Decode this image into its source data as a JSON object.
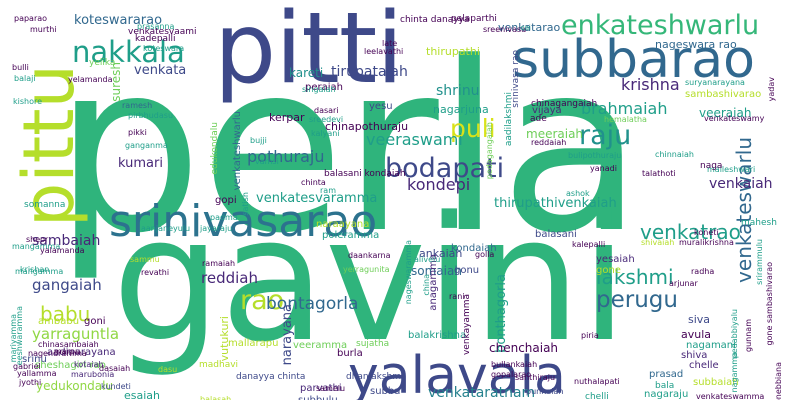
{
  "title": "word cloud",
  "palette": {
    "green": "#2fb47c",
    "green2": "#35b779",
    "teal": "#1f9e89",
    "teal2": "#26828e",
    "blue": "#31688e",
    "navy": "#3e4989",
    "purple": "#482878",
    "dark": "#440154",
    "lime": "#6ece58",
    "lime2": "#90d743",
    "yellow": "#b5de2b",
    "yellow2": "#d8e219",
    "cyan": "#21918c",
    "steel": "#2c728e"
  },
  "words": [
    {
      "text": "perla",
      "color": "green"
    },
    {
      "text": "gavini",
      "color": "green"
    },
    {
      "text": "pitti",
      "color": "navy"
    },
    {
      "text": "subbarao",
      "color": "blue"
    },
    {
      "text": "pittu",
      "color": "yellow"
    },
    {
      "text": "srinivasarao",
      "color": "steel"
    },
    {
      "text": "yalavala",
      "color": "navy"
    },
    {
      "text": "enkateshwarlu",
      "color": "green2"
    },
    {
      "text": "nakkala",
      "color": "teal"
    },
    {
      "text": "tirupataiah",
      "color": "navy"
    },
    {
      "text": "puli",
      "color": "yellow2"
    },
    {
      "text": "raju",
      "color": "cyan"
    },
    {
      "text": "bodapati",
      "color": "navy"
    },
    {
      "text": "rao",
      "color": "yellow"
    },
    {
      "text": "perugu",
      "color": "blue"
    },
    {
      "text": "lakshmi",
      "color": "teal"
    },
    {
      "text": "venkateswarlu",
      "color": "blue"
    },
    {
      "text": "venkatrao",
      "color": "teal"
    },
    {
      "text": "babu",
      "color": "yellow"
    },
    {
      "text": "bontagorla",
      "color": "blue"
    },
    {
      "text": "pothuraju",
      "color": "blue"
    },
    {
      "text": "venkataratnam",
      "color": "teal2"
    },
    {
      "text": "sambaiah",
      "color": "purple"
    },
    {
      "text": "gangaiah",
      "color": "navy"
    },
    {
      "text": "yarraguntla",
      "color": "lime2"
    },
    {
      "text": "venkaiah",
      "color": "purple"
    },
    {
      "text": "kondepi",
      "color": "purple"
    },
    {
      "text": "veeraswami",
      "color": "teal"
    },
    {
      "text": "reddiah",
      "color": "purple"
    },
    {
      "text": "brahmaiah",
      "color": "teal"
    },
    {
      "text": "krishna",
      "color": "purple"
    },
    {
      "text": "koteswararao",
      "color": "blue"
    },
    {
      "text": "venkata",
      "color": "navy"
    },
    {
      "text": "shrinu",
      "color": "cyan"
    },
    {
      "text": "kareti",
      "color": "cyan"
    },
    {
      "text": "kumari",
      "color": "purple"
    },
    {
      "text": "venkatesvaramma",
      "color": "teal"
    },
    {
      "text": "thirupathivenkaiah",
      "color": "teal"
    },
    {
      "text": "bonthagorla",
      "color": "teal"
    },
    {
      "text": "chenchaiah",
      "color": "dark"
    },
    {
      "text": "narayana",
      "color": "navy"
    },
    {
      "text": "veeraiah",
      "color": "teal"
    },
    {
      "text": "meeraiah",
      "color": "lime"
    },
    {
      "text": "somaiah",
      "color": "blue"
    },
    {
      "text": "yedukondalu",
      "color": "lime2"
    },
    {
      "text": "suresh",
      "color": "lime"
    },
    {
      "text": "venkatarao",
      "color": "blue"
    },
    {
      "text": "nageswara rao",
      "color": "blue"
    },
    {
      "text": "sambashivarao",
      "color": "yellow"
    },
    {
      "text": "chinapothuraju",
      "color": "dark"
    },
    {
      "text": "thirupathi",
      "color": "yellow"
    },
    {
      "text": "peraiah",
      "color": "dark"
    },
    {
      "text": "poleramma",
      "color": "teal"
    },
    {
      "text": "ankaiah",
      "color": "navy"
    },
    {
      "text": "esaiah",
      "color": "teal"
    },
    {
      "text": "subbulu",
      "color": "navy"
    },
    {
      "text": "vutukuri",
      "color": "yellow"
    },
    {
      "text": "gopi",
      "color": "dark"
    },
    {
      "text": "avula",
      "color": "dark"
    },
    {
      "text": "shiva",
      "color": "purple"
    },
    {
      "text": "kondaiah",
      "color": "blue"
    },
    {
      "text": "balasani",
      "color": "navy"
    },
    {
      "text": "yesaiah",
      "color": "purple"
    },
    {
      "text": "gone",
      "color": "yellow"
    },
    {
      "text": "siva",
      "color": "navy"
    },
    {
      "text": "nagamani",
      "color": "teal"
    },
    {
      "text": "prasad",
      "color": "blue"
    },
    {
      "text": "sheshagiri rao",
      "color": "lime"
    },
    {
      "text": "aadinarayana",
      "color": "purple"
    },
    {
      "text": "ambabu",
      "color": "yellow"
    },
    {
      "text": "goni",
      "color": "dark"
    },
    {
      "text": "srinu",
      "color": "navy"
    },
    {
      "text": "mallarapu",
      "color": "yellow"
    },
    {
      "text": "somanna",
      "color": "teal"
    },
    {
      "text": "kerpar",
      "color": "dark"
    },
    {
      "text": "yesu",
      "color": "navy"
    },
    {
      "text": "nagarjuna",
      "color": "teal"
    },
    {
      "text": "vijaya",
      "color": "purple"
    },
    {
      "text": "chinagangaiah",
      "color": "dark"
    },
    {
      "text": "venkateshwarlu",
      "color": "blue"
    },
    {
      "text": "subbaiah",
      "color": "yellow"
    },
    {
      "text": "chelle",
      "color": "purple"
    },
    {
      "text": "burla",
      "color": "dark"
    },
    {
      "text": "balakrishna",
      "color": "teal"
    },
    {
      "text": "anagamma",
      "color": "purple"
    },
    {
      "text": "gonu",
      "color": "navy"
    },
    {
      "text": "venkayamma",
      "color": "dark"
    },
    {
      "text": "sujatha",
      "color": "lime"
    },
    {
      "text": "veeramma",
      "color": "lime"
    },
    {
      "text": "nagaraju",
      "color": "teal"
    },
    {
      "text": "subba",
      "color": "navy"
    },
    {
      "text": "parvathi",
      "color": "purple"
    },
    {
      "text": "punnaiah",
      "color": "navy"
    },
    {
      "text": "chelli",
      "color": "teal"
    },
    {
      "text": "bala",
      "color": "teal"
    },
    {
      "text": "danayya chinta",
      "color": "navy"
    },
    {
      "text": "dhanlakshmi",
      "color": "navy"
    },
    {
      "text": "golla",
      "color": "dark"
    },
    {
      "text": "sammu",
      "color": "yellow"
    },
    {
      "text": "kundeti",
      "color": "navy"
    },
    {
      "text": "kotaiah",
      "color": "purple"
    },
    {
      "text": "marubonia",
      "color": "purple"
    },
    {
      "text": "nagendramma",
      "color": "dark"
    },
    {
      "text": "ramesh",
      "color": "blue"
    },
    {
      "text": "pirbhudasu",
      "color": "teal"
    },
    {
      "text": "ganganma",
      "color": "teal"
    },
    {
      "text": "pikki",
      "color": "dark"
    },
    {
      "text": "dasari",
      "color": "dark"
    },
    {
      "text": "sreedevi",
      "color": "teal"
    },
    {
      "text": "kalyani",
      "color": "teal"
    },
    {
      "text": "singaiah",
      "color": "teal"
    },
    {
      "text": "edukondalu",
      "color": "lime"
    },
    {
      "text": "vamsi",
      "color": "teal"
    },
    {
      "text": "bujji",
      "color": "teal"
    },
    {
      "text": "satish",
      "color": "teal"
    },
    {
      "text": "padma",
      "color": "teal"
    },
    {
      "text": "jayaraju",
      "color": "teal"
    },
    {
      "text": "aanjaneyulu",
      "color": "teal"
    },
    {
      "text": "chinta",
      "color": "dark"
    },
    {
      "text": "chinta danayya",
      "color": "dark"
    },
    {
      "text": "palaparthi",
      "color": "dark"
    },
    {
      "text": "sreenivasa",
      "color": "dark"
    },
    {
      "text": "paparao",
      "color": "dark"
    },
    {
      "text": "prasanna",
      "color": "teal"
    },
    {
      "text": "murthi",
      "color": "dark"
    },
    {
      "text": "kadepalli",
      "color": "dark"
    },
    {
      "text": "koteswara",
      "color": "teal"
    },
    {
      "text": "venkatesvaami",
      "color": "dark"
    },
    {
      "text": "leelavathi",
      "color": "dark"
    },
    {
      "text": "late",
      "color": "dark"
    },
    {
      "text": "bulli",
      "color": "dark"
    },
    {
      "text": "balaji",
      "color": "teal"
    },
    {
      "text": "kishore",
      "color": "teal"
    },
    {
      "text": "krishan",
      "color": "teal"
    },
    {
      "text": "mangamma",
      "color": "teal"
    },
    {
      "text": "gabriel",
      "color": "dark"
    },
    {
      "text": "yallamma",
      "color": "dark"
    },
    {
      "text": "jyothi",
      "color": "dark"
    },
    {
      "text": "chinasambaiah",
      "color": "dark"
    },
    {
      "text": "ramaiah",
      "color": "dark"
    },
    {
      "text": "revathi",
      "color": "dark"
    },
    {
      "text": "daankarna",
      "color": "dark"
    },
    {
      "text": "yerragunita",
      "color": "lime"
    },
    {
      "text": "alivelu",
      "color": "teal"
    },
    {
      "text": "naraayana",
      "color": "yellow"
    },
    {
      "text": "koneti",
      "color": "dark"
    },
    {
      "text": "muralikrishna",
      "color": "dark"
    },
    {
      "text": "shivaiah",
      "color": "yellow"
    },
    {
      "text": "kalepalli",
      "color": "dark"
    },
    {
      "text": "radha",
      "color": "dark"
    },
    {
      "text": "arjunar",
      "color": "dark"
    },
    {
      "text": "gunnam",
      "color": "dark"
    },
    {
      "text": "mahesh",
      "color": "teal"
    },
    {
      "text": "malleshwari",
      "color": "teal"
    },
    {
      "text": "nuthalapati",
      "color": "dark"
    },
    {
      "text": "venkateswamma",
      "color": "dark"
    },
    {
      "text": "gone sambashivarao",
      "color": "dark"
    },
    {
      "text": "yanadi",
      "color": "dark"
    },
    {
      "text": "talathoti",
      "color": "dark"
    },
    {
      "text": "reddaiah",
      "color": "dark"
    },
    {
      "text": "bulipothuraju",
      "color": "teal"
    },
    {
      "text": "chinnaiah",
      "color": "teal"
    },
    {
      "text": "venkateswamy",
      "color": "dark"
    },
    {
      "text": "hemalatha",
      "color": "lime"
    },
    {
      "text": "suryanarayana",
      "color": "teal"
    },
    {
      "text": "yadav",
      "color": "dark"
    },
    {
      "text": "ade",
      "color": "dark"
    },
    {
      "text": "naga",
      "color": "dark"
    },
    {
      "text": "ashok",
      "color": "teal"
    },
    {
      "text": "santhiraju",
      "color": "dark"
    },
    {
      "text": "bullankaiah",
      "color": "dark"
    },
    {
      "text": "gopalarao",
      "color": "dark"
    },
    {
      "text": "madhavi",
      "color": "yellow"
    },
    {
      "text": "balasah",
      "color": "yellow"
    },
    {
      "text": "yelika",
      "color": "lime"
    },
    {
      "text": "dasu",
      "color": "yellow"
    },
    {
      "text": "piria",
      "color": "dark"
    },
    {
      "text": "rani",
      "color": "dark"
    },
    {
      "text": "samelu",
      "color": "dark"
    },
    {
      "text": "balasani kondaiah",
      "color": "dark"
    },
    {
      "text": "soi",
      "color": "teal"
    },
    {
      "text": "ram",
      "color": "teal"
    },
    {
      "text": "china",
      "color": "teal"
    },
    {
      "text": "aadilakshmi",
      "color": "teal"
    },
    {
      "text": "pedagangaiah",
      "color": "lime"
    },
    {
      "text": "nageswaramma",
      "color": "teal"
    },
    {
      "text": "srinivasa rao",
      "color": "navy"
    },
    {
      "text": "eeshwaramma",
      "color": "teal"
    },
    {
      "text": "mangamma",
      "color": "teal"
    },
    {
      "text": "sheor",
      "color": "dark"
    },
    {
      "text": "yalamanda",
      "color": "dark"
    },
    {
      "text": "mariyamma",
      "color": "teal"
    },
    {
      "text": "srirammulu",
      "color": "teal"
    },
    {
      "text": "nagamma",
      "color": "teal"
    },
    {
      "text": "gonebbiana",
      "color": "dark"
    },
    {
      "text": "pedabbiyalu",
      "color": "teal"
    },
    {
      "text": "marpu",
      "color": "dark"
    },
    {
      "text": "yelamanda",
      "color": "dark"
    },
    {
      "text": "dasaiah",
      "color": "dark"
    }
  ]
}
